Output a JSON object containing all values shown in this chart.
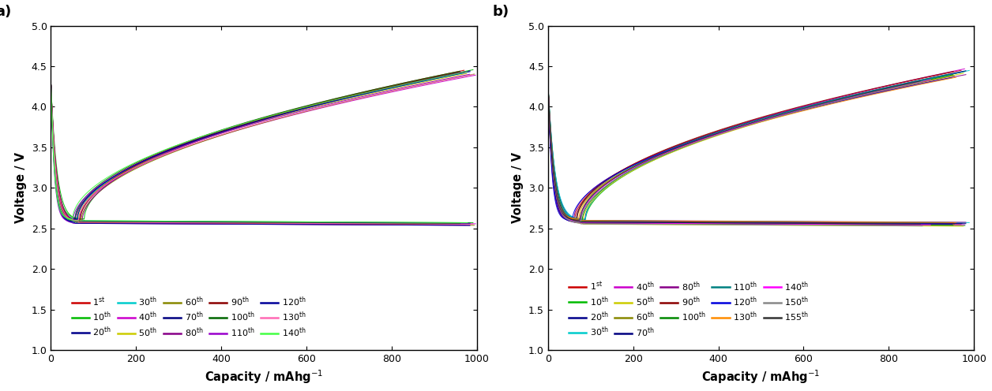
{
  "panel_a_cycles": [
    1,
    10,
    20,
    30,
    40,
    50,
    60,
    70,
    80,
    90,
    100,
    110,
    120,
    130,
    140
  ],
  "panel_a_colors": [
    "#cc0000",
    "#00bb00",
    "#00008B",
    "#00cccc",
    "#cc00cc",
    "#cccc00",
    "#888800",
    "#000080",
    "#880088",
    "#8b0000",
    "#006600",
    "#9900cc",
    "#000099",
    "#ff69b4",
    "#44ff44"
  ],
  "panel_a_labels": [
    "1st",
    "10th",
    "20th",
    "30th",
    "40th",
    "50th",
    "60th",
    "70th",
    "80th",
    "90th",
    "100th",
    "110th",
    "120th",
    "130th",
    "140th"
  ],
  "panel_b_cycles": [
    1,
    10,
    20,
    30,
    40,
    50,
    60,
    70,
    80,
    90,
    100,
    110,
    120,
    130,
    140,
    150,
    155
  ],
  "panel_b_colors": [
    "#cc0000",
    "#00bb00",
    "#00008B",
    "#00cccc",
    "#cc00cc",
    "#cccc00",
    "#888800",
    "#000080",
    "#880088",
    "#8b0000",
    "#008800",
    "#008080",
    "#0000dd",
    "#ff8c00",
    "#ff00ff",
    "#888888",
    "#333333"
  ],
  "panel_b_labels": [
    "1st",
    "10th",
    "20th",
    "30th",
    "40th",
    "50th",
    "60th",
    "70th",
    "80th",
    "90th",
    "100th",
    "110th",
    "120th",
    "130th",
    "140th",
    "150th",
    "155th"
  ],
  "xlim": [
    0,
    1000
  ],
  "ylim": [
    1.0,
    5.0
  ],
  "yticks": [
    1.0,
    1.5,
    2.0,
    2.5,
    3.0,
    3.5,
    4.0,
    4.5,
    5.0
  ],
  "xticks": [
    0,
    200,
    400,
    600,
    800,
    1000
  ],
  "xlabel": "Capacity / mAhg$^{-1}$",
  "ylabel": "Voltage / V",
  "label_a": "a)",
  "label_b": "b)"
}
